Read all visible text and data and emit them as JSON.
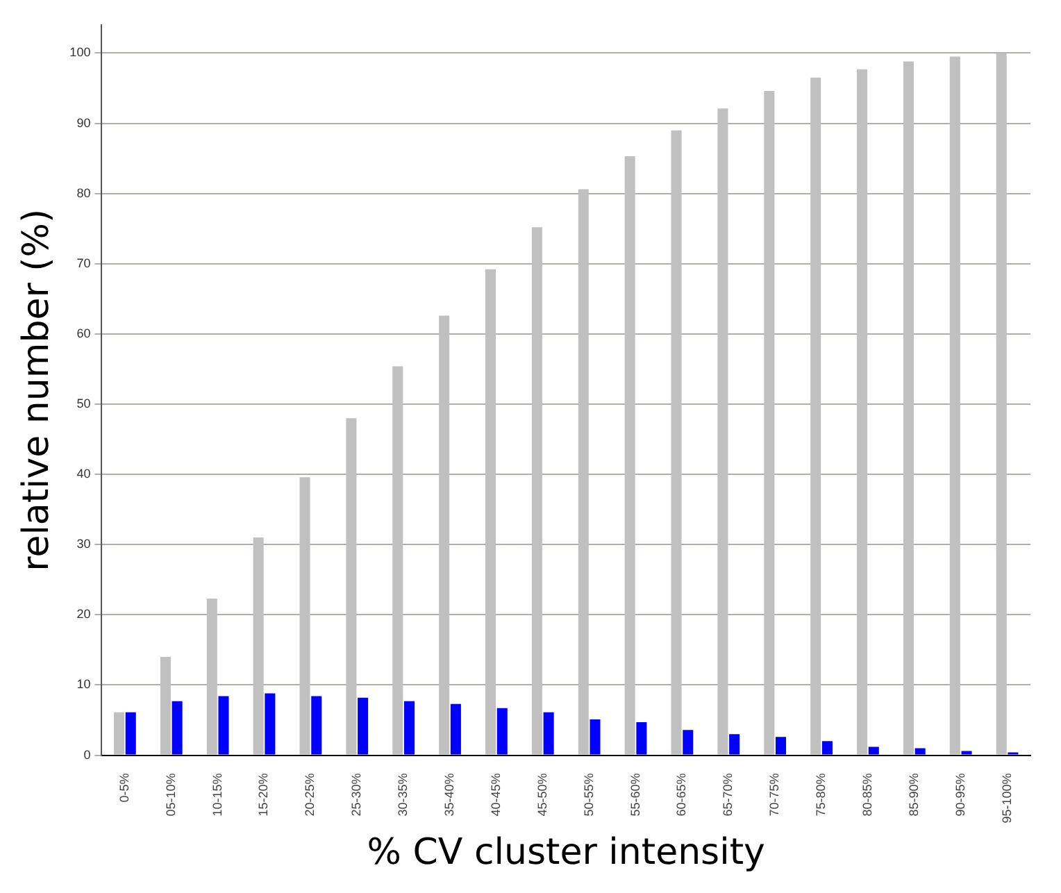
{
  "chart_data": {
    "type": "bar",
    "xlabel": "% CV cluster intensity",
    "ylabel": "relative number (%)",
    "categories": [
      "0-5%",
      "05-10%",
      "10-15%",
      "15-20%",
      "20-25%",
      "25-30%",
      "30-35%",
      "35-40%",
      "40-45%",
      "45-50%",
      "50-55%",
      "55-60%",
      "60-65%",
      "65-70%",
      "70-75%",
      "75-80%",
      "80-85%",
      "85-90%",
      "90-95%",
      "95-100%"
    ],
    "series": [
      {
        "color": "#c0c0c0",
        "values": [
          6.1,
          14,
          22.3,
          31,
          39.6,
          48,
          55.4,
          62.6,
          69.2,
          75.2,
          80.6,
          85.3,
          89,
          92.1,
          94.6,
          96.5,
          97.7,
          98.8,
          99.5,
          100
        ]
      },
      {
        "color": "#0000ff",
        "values": [
          6.1,
          7.7,
          8.4,
          8.8,
          8.4,
          8.2,
          7.7,
          7.3,
          6.7,
          6.1,
          5.1,
          4.7,
          3.6,
          3.0,
          2.6,
          2.0,
          1.2,
          1.0,
          0.6,
          0.4
        ]
      }
    ],
    "ylim": [
      0,
      104
    ],
    "yticks": [
      0,
      10,
      20,
      30,
      40,
      50,
      60,
      70,
      80,
      90,
      100
    ],
    "grid": "y",
    "legend": false
  }
}
